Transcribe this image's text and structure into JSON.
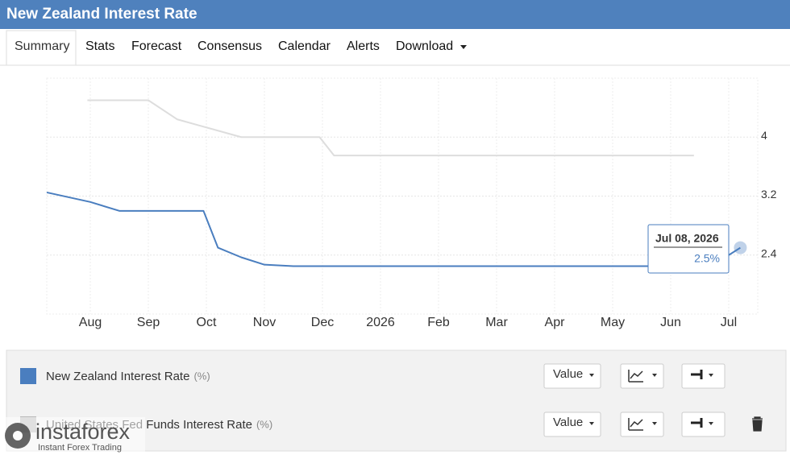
{
  "header": {
    "title": "New Zealand Interest Rate"
  },
  "tabs": [
    "Summary",
    "Stats",
    "Forecast",
    "Consensus",
    "Calendar",
    "Alerts",
    "Download"
  ],
  "chart_data": {
    "type": "line",
    "xlim": [
      7.25,
      19.5
    ],
    "xticks": [
      {
        "value": 8,
        "label": "Aug"
      },
      {
        "value": 9,
        "label": "Sep"
      },
      {
        "value": 10,
        "label": "Oct"
      },
      {
        "value": 11,
        "label": "Nov"
      },
      {
        "value": 12,
        "label": "Dec"
      },
      {
        "value": 13,
        "label": "2026"
      },
      {
        "value": 14,
        "label": "Feb"
      },
      {
        "value": 15,
        "label": "Mar"
      },
      {
        "value": 16,
        "label": "Apr"
      },
      {
        "value": 17,
        "label": "May"
      },
      {
        "value": 18,
        "label": "Jun"
      },
      {
        "value": 19,
        "label": "Jul"
      }
    ],
    "ylim": [
      1.6,
      4.8
    ],
    "yticks": [
      2.4,
      3.2,
      4
    ],
    "grid": true,
    "series": [
      {
        "name": "New Zealand Interest Rate",
        "color": "#4a7ebf",
        "x": [
          7.25,
          8,
          8.5,
          9.95,
          10.2,
          10.6,
          11,
          11.5,
          18.7,
          19.2
        ],
        "values": [
          3.25,
          3.12,
          3.0,
          3.0,
          2.5,
          2.37,
          2.27,
          2.25,
          2.25,
          2.5
        ]
      },
      {
        "name": "United States Fed Funds Interest Rate",
        "color": "#dddddd",
        "x": [
          7.95,
          9,
          9.5,
          10.6,
          11.95,
          12.2,
          18.4
        ],
        "values": [
          4.5,
          4.5,
          4.24,
          4.0,
          4.0,
          3.75,
          3.75
        ]
      }
    ]
  },
  "tooltip": {
    "date": "Jul 08, 2026",
    "value": 2.5,
    "value_label": "2.5%"
  },
  "legend": [
    {
      "unit": "(%)",
      "button": "Value"
    },
    {
      "unit": "(%)",
      "button": "Value"
    }
  ],
  "watermark": {
    "brand": "instaforex",
    "tagline": "Instant Forex Trading"
  }
}
